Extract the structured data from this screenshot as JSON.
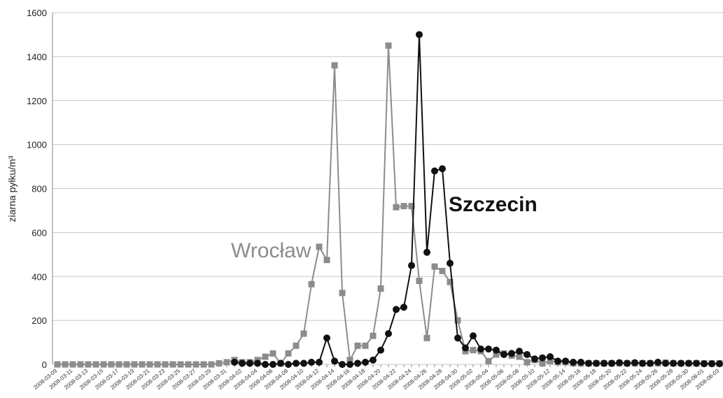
{
  "chart_data": {
    "type": "line",
    "y_label": "ziarna pyłku/m³",
    "categories": [
      "2008-03-09",
      null,
      "2008-03-11",
      null,
      "2008-03-13",
      null,
      "2008-03-15",
      null,
      "2008-03-17",
      null,
      "2008-03-19",
      null,
      "2008-03-21",
      null,
      "2008-03-23",
      null,
      "2008-03-25",
      null,
      "2008-03-27",
      null,
      "2008-03-29",
      null,
      "2008-03-31",
      null,
      "2008-04-02",
      null,
      "2008-04-04",
      null,
      "2008-04-06",
      null,
      "2008-04-08",
      null,
      "2008-04-10",
      null,
      "2008-04-12",
      null,
      "2008-04-14",
      null,
      "2008-04-16",
      null,
      "2008-04-18",
      null,
      "2008-04-20",
      null,
      "2008-04-22",
      null,
      "2008-04-24",
      null,
      "2008-04-26",
      null,
      "2008-04-28",
      null,
      "2008-04-30",
      null,
      "2008-05-02",
      null,
      "2008-05-04",
      null,
      "2008-05-06",
      null,
      "2008-05-08",
      null,
      "2008-05-10",
      null,
      "2008-05-12",
      null,
      "2008-05-14",
      null,
      "2008-05-16",
      null,
      "2008-05-18",
      null,
      "2008-05-20",
      null,
      "2008-05-22",
      null,
      "2008-05-24",
      null,
      "2008-05-26",
      null,
      "2008-05-28",
      null,
      "2008-05-30",
      null,
      "2008-06-01",
      null,
      "2008-06-03"
    ],
    "series": [
      {
        "name": "Wrocław",
        "color": "#8c8c8c",
        "marker": "square",
        "values": [
          0,
          0,
          0,
          0,
          0,
          0,
          0,
          0,
          0,
          0,
          0,
          0,
          0,
          0,
          0,
          0,
          0,
          0,
          0,
          0,
          0,
          5,
          10,
          20,
          10,
          10,
          20,
          35,
          50,
          5,
          50,
          85,
          140,
          365,
          535,
          475,
          1360,
          325,
          20,
          85,
          85,
          130,
          345,
          1450,
          715,
          720,
          720,
          380,
          120,
          445,
          425,
          375,
          200,
          60,
          65,
          60,
          15,
          45,
          50,
          40,
          35,
          10,
          20,
          5,
          15,
          10,
          10,
          5,
          5,
          5,
          5,
          5,
          5,
          5,
          5,
          5,
          5,
          5,
          5,
          8,
          5,
          5,
          5,
          5,
          5,
          5,
          5
        ]
      },
      {
        "name": "Szczecin",
        "color": "#111111",
        "marker": "circle",
        "values": [
          null,
          null,
          null,
          null,
          null,
          null,
          null,
          null,
          null,
          null,
          null,
          null,
          null,
          null,
          null,
          null,
          null,
          null,
          null,
          null,
          null,
          null,
          null,
          10,
          5,
          5,
          5,
          0,
          0,
          5,
          0,
          5,
          5,
          10,
          10,
          120,
          15,
          0,
          0,
          5,
          10,
          20,
          65,
          140,
          250,
          260,
          450,
          1500,
          510,
          880,
          890,
          460,
          120,
          75,
          130,
          70,
          70,
          65,
          45,
          50,
          60,
          45,
          25,
          30,
          35,
          15,
          15,
          10,
          10,
          5,
          5,
          5,
          5,
          8,
          5,
          8,
          5,
          5,
          10,
          5,
          5,
          5,
          5,
          5,
          3,
          3,
          3
        ]
      }
    ],
    "ylim": [
      0,
      1600
    ],
    "yticks": [
      0,
      200,
      400,
      600,
      800,
      1000,
      1200,
      1400,
      1600
    ],
    "grid": true
  }
}
